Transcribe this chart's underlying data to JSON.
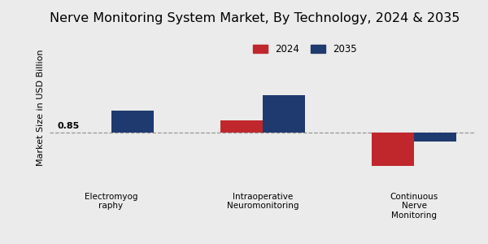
{
  "title": "Nerve Monitoring System Market, By Technology, 2024 & 2035",
  "ylabel": "Market Size in USD Billion",
  "categories": [
    "Electromyog\nraphy",
    "Intraoperative\nNeuromonitoring",
    "Continuous\nNerve\nMonitoring"
  ],
  "values_2024": [
    0.85,
    1.05,
    0.3
  ],
  "values_2035": [
    1.2,
    1.45,
    0.7
  ],
  "bar_color_2024": "#c0272d",
  "bar_color_2035": "#1f3a6e",
  "annotation_text": "0.85",
  "annotation_bar_index": 0,
  "dashed_line_y": 0.85,
  "background_color": "#ebebeb",
  "legend_labels": [
    "2024",
    "2035"
  ],
  "title_fontsize": 11.5,
  "ylabel_fontsize": 8,
  "bar_width": 0.28,
  "ylim": [
    0.0,
    2.5
  ],
  "bar_bottom": 0.85
}
